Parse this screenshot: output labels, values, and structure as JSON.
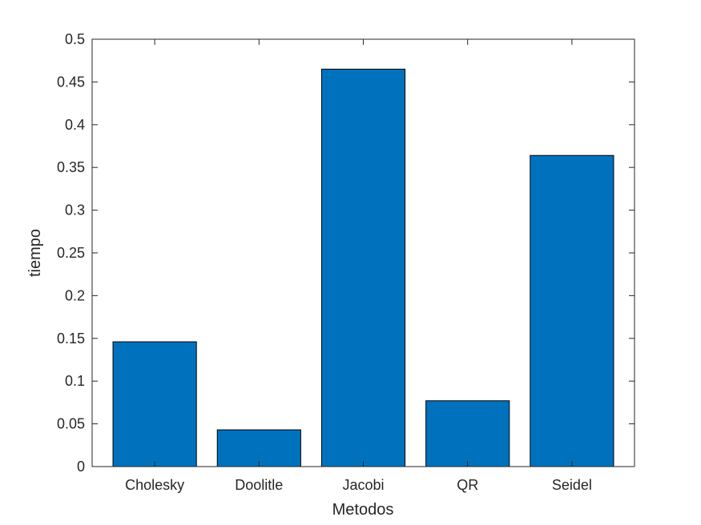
{
  "chart_data": {
    "type": "bar",
    "categories": [
      "Cholesky",
      "Doolitle",
      "Jacobi",
      "QR",
      "Seidel"
    ],
    "values": [
      0.146,
      0.043,
      0.465,
      0.077,
      0.364
    ],
    "title": "",
    "xlabel": "Metodos",
    "ylabel": "tiempo",
    "ylim": [
      0,
      0.5
    ],
    "yticks": [
      "0",
      "0.05",
      "0.1",
      "0.15",
      "0.2",
      "0.25",
      "0.3",
      "0.35",
      "0.4",
      "0.45",
      "0.5"
    ],
    "grid": false,
    "bar_color": "#0072bd",
    "edge_color": "#000000"
  }
}
